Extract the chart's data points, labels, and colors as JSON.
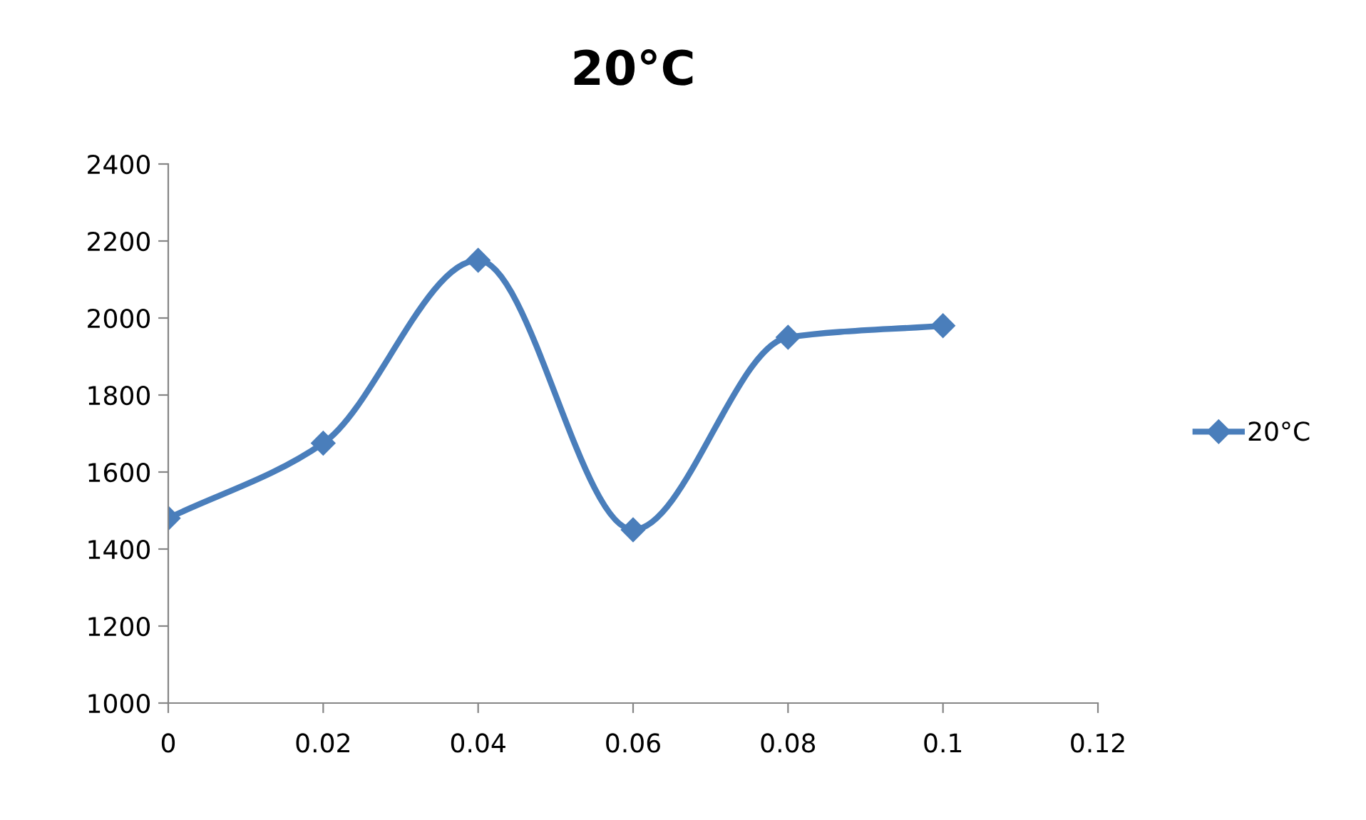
{
  "chart_data": {
    "type": "line",
    "title": "20°C",
    "x": [
      0,
      0.02,
      0.04,
      0.06,
      0.08,
      0.1
    ],
    "series": [
      {
        "name": "20°C",
        "color": "#4a7ebb",
        "values": [
          1480,
          1675,
          2150,
          1450,
          1950,
          1980
        ]
      }
    ],
    "xlim": [
      0,
      0.12
    ],
    "xticks": [
      0,
      0.02,
      0.04,
      0.06,
      0.08,
      0.1,
      0.12
    ],
    "ylim": [
      1000,
      2400
    ],
    "yticks": [
      1000,
      1200,
      1400,
      1600,
      1800,
      2000,
      2200,
      2400
    ],
    "grid": false,
    "legend": "right",
    "marker": "diamond",
    "line_style": "solid"
  }
}
